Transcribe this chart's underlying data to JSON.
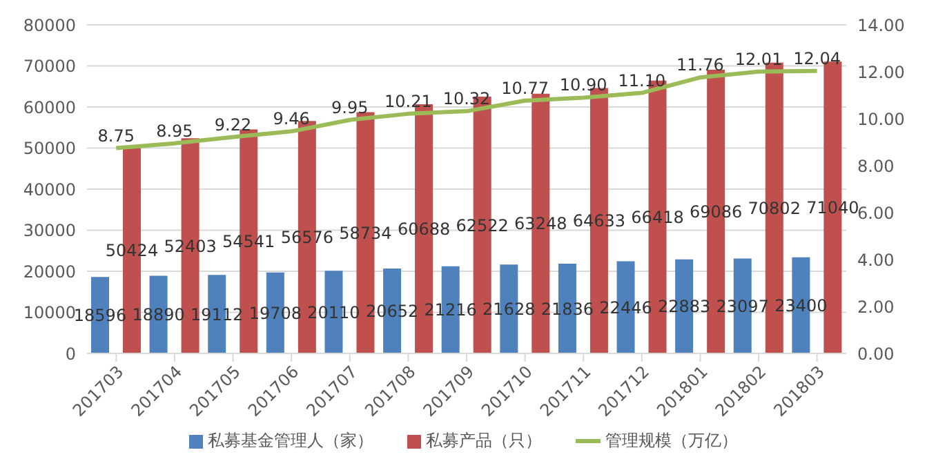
{
  "chart_data": {
    "type": "bar",
    "categories": [
      "201703",
      "201704",
      "201705",
      "201706",
      "201707",
      "201708",
      "201709",
      "201710",
      "201711",
      "201712",
      "201801",
      "201802",
      "201803"
    ],
    "series": [
      {
        "name": "私募基金管理人（家）",
        "color": "#4f81bd",
        "values": [
          18596,
          18890,
          19112,
          19708,
          20110,
          20652,
          21216,
          21628,
          21836,
          22446,
          22883,
          23097,
          23400
        ]
      },
      {
        "name": "私募产品（只）",
        "color": "#c0504d",
        "values": [
          50424,
          52403,
          54541,
          56576,
          58734,
          60688,
          62522,
          63248,
          64633,
          66418,
          69086,
          70802,
          71040
        ]
      },
      {
        "name": "管理规模（万亿）",
        "type": "line",
        "axis": "y2",
        "color": "#9bbb59",
        "values": [
          8.75,
          8.95,
          9.22,
          9.46,
          9.95,
          10.21,
          10.32,
          10.77,
          10.9,
          11.1,
          11.76,
          12.01,
          12.04
        ],
        "value_labels": [
          "8.75",
          "8.95",
          "9.22",
          "9.46",
          "9.95",
          "10.21",
          "10.32",
          "10.77",
          "10.90",
          "11.10",
          "11.76",
          "12.01",
          "12.04"
        ]
      }
    ],
    "ylim": [
      0,
      80000
    ],
    "yticks": [
      0,
      10000,
      20000,
      30000,
      40000,
      50000,
      60000,
      70000,
      80000
    ],
    "y2lim": [
      0,
      14
    ],
    "y2ticks": [
      {
        "value": 0,
        "label": "0.00"
      },
      {
        "value": 2,
        "label": "2.00"
      },
      {
        "value": 4,
        "label": "4.00"
      },
      {
        "value": 6,
        "label": "6.00"
      },
      {
        "value": 8,
        "label": "8.00"
      },
      {
        "value": 10,
        "label": "10.00"
      },
      {
        "value": 12,
        "label": "12.00"
      },
      {
        "value": 14,
        "label": "14.00"
      }
    ],
    "grid": "y",
    "legend": "bottom",
    "data_labels": true,
    "marker": "none"
  }
}
